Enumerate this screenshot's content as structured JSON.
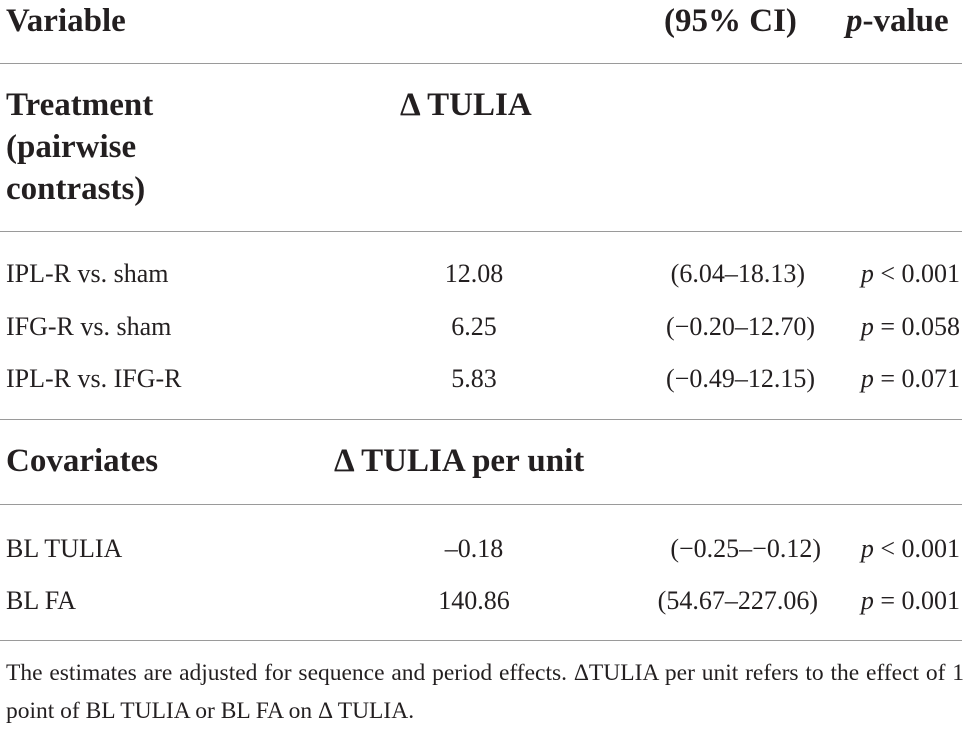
{
  "header": {
    "variable": "Variable",
    "ci": "(95% CI)",
    "p_italic": "p",
    "p_rest": "-value"
  },
  "treatment_section": {
    "title_line1": "Treatment",
    "title_line2": "(pairwise",
    "title_line3": "contrasts)",
    "measure": "Δ TULIA",
    "rows": [
      {
        "variable": "IPL-R vs. sham",
        "estimate": "12.08",
        "ci": "(6.04–18.13)",
        "p_symbol": "p",
        "p_value": "< 0.001"
      },
      {
        "variable": "IFG-R vs. sham",
        "estimate": "6.25",
        "ci": "(−0.20–12.70)",
        "p_symbol": "p",
        "p_value": "= 0.058"
      },
      {
        "variable": "IPL-R vs. IFG-R",
        "estimate": "5.83",
        "ci": "(−0.49–12.15)",
        "p_symbol": "p",
        "p_value": "= 0.071"
      }
    ]
  },
  "covariates_section": {
    "title": "Covariates",
    "measure": "Δ TULIA per unit",
    "rows": [
      {
        "variable": "BL TULIA",
        "estimate": "–0.18",
        "ci": "(−0.25–−0.12)",
        "p_symbol": "p",
        "p_value": "< 0.001"
      },
      {
        "variable": "BL FA",
        "estimate": "140.86",
        "ci": "(54.67–227.06)",
        "p_symbol": "p",
        "p_value": "= 0.001"
      }
    ]
  },
  "footnote": "The estimates are adjusted for sequence and period effects. ΔTULIA per unit refers to the effect of 1 point of BL TULIA or BL FA on Δ TULIA."
}
